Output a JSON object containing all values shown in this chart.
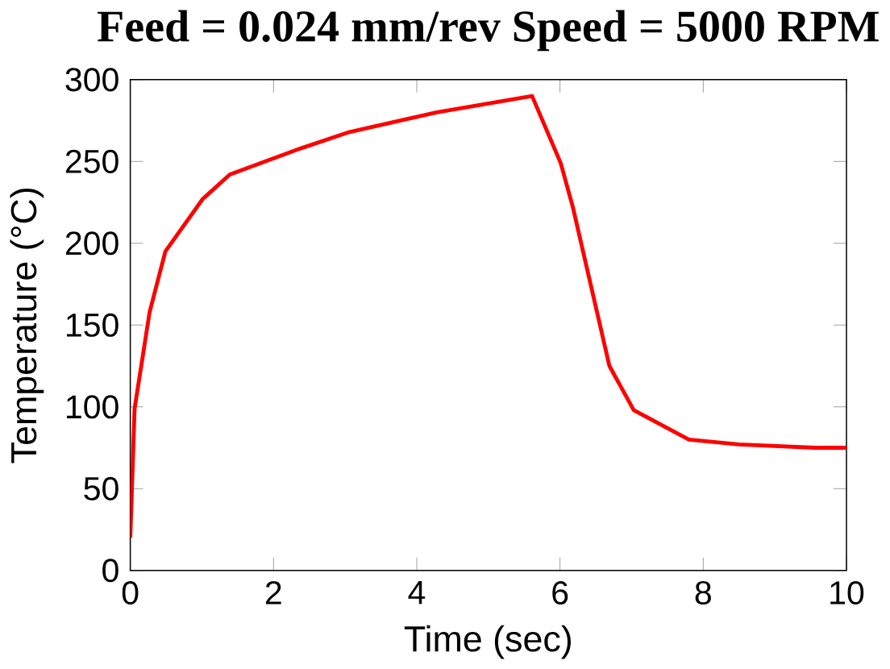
{
  "chart_data": {
    "type": "line",
    "title": "Feed = 0.024 mm/rev   Speed = 5000 RPM",
    "xlabel": "Time (sec)",
    "ylabel": "Temperature (°C)",
    "x": [
      0,
      0.06,
      0.27,
      0.49,
      1.01,
      1.39,
      2.38,
      3.06,
      4.28,
      5.61,
      6.01,
      6.18,
      6.69,
      7.03,
      7.8,
      8.5,
      9.56,
      10
    ],
    "series": [
      {
        "color": "#ff0000",
        "values": [
          20,
          99,
          158,
          195,
          227,
          242,
          258,
          268,
          280,
          290,
          249,
          222,
          125,
          98,
          80,
          77,
          75,
          75
        ]
      }
    ],
    "xlim": [
      0,
      10
    ],
    "ylim": [
      0,
      300
    ],
    "xticks": [
      0,
      2,
      4,
      6,
      8,
      10
    ],
    "yticks": [
      0,
      50,
      100,
      150,
      200,
      250,
      300
    ],
    "grid": false,
    "marker": "none",
    "line_style": "solid"
  }
}
